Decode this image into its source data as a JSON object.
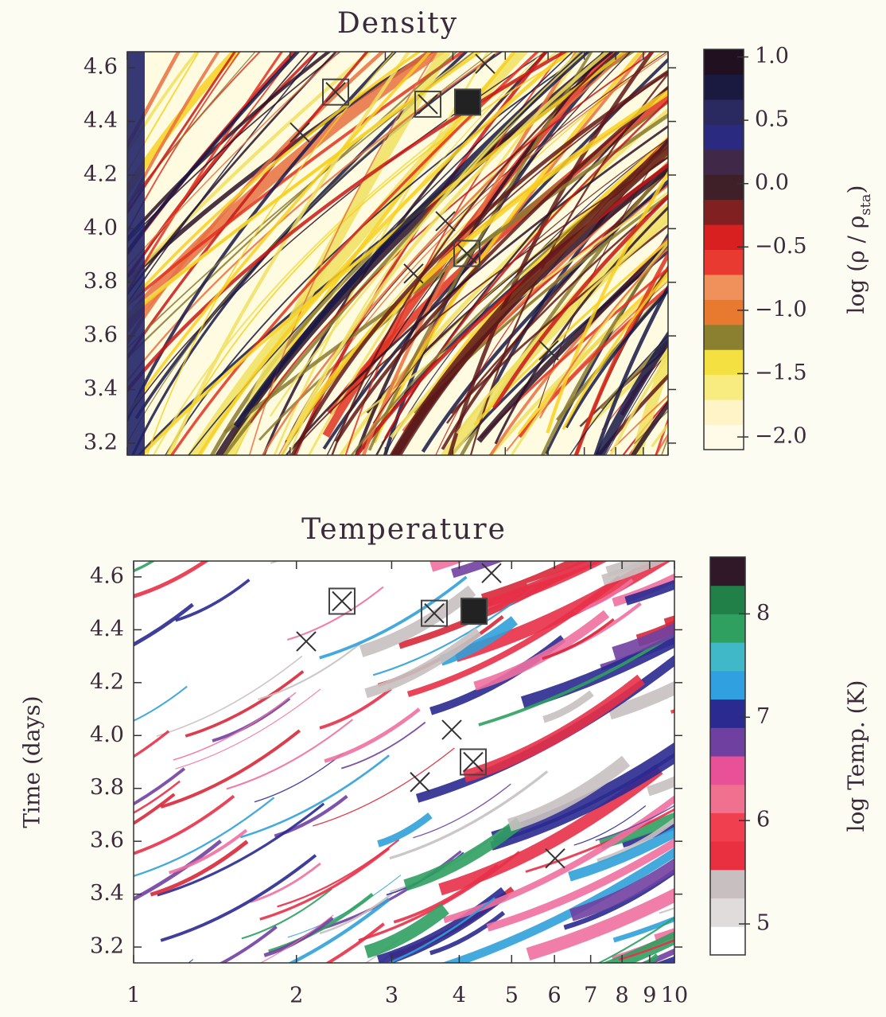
{
  "chart_data": [
    {
      "type": "density-map",
      "title": "Density",
      "xlim": [
        1,
        10
      ],
      "xscale": "log",
      "xticks": [
        1,
        2,
        3,
        4,
        5,
        6,
        7,
        8,
        9,
        10
      ],
      "xtick_labels": false,
      "ylim": [
        3.155,
        4.66
      ],
      "yticks": [
        3.2,
        3.4,
        3.6,
        3.8,
        {
          "value": 4.0,
          "label": "4.0"
        },
        4.2,
        4.4,
        4.6
      ],
      "background": "#fffbe0",
      "palette": [
        "#f8d020",
        "#c81818",
        "#e03020",
        "#601818",
        "#2a1028",
        "#181848",
        "#f0e060",
        "#e87040",
        "#8a7a30"
      ],
      "colorbar": {
        "label": [
          "log (ρ / ρ",
          "sta",
          ")"
        ],
        "lim": [
          -2.1,
          1.06
        ],
        "ticks": [
          {
            "value": -2.0,
            "label": "−2.0"
          },
          {
            "value": -1.5,
            "label": "−1.5"
          },
          {
            "value": -1.0,
            "label": "−1.0"
          },
          {
            "value": -0.5,
            "label": "−0.5"
          },
          {
            "value": 0.0,
            "label": "0.0"
          },
          {
            "value": 0.5,
            "label": "0.5"
          },
          {
            "value": 1.0,
            "label": "1.0"
          }
        ],
        "colors": [
          "#fffbe8",
          "#fff4c8",
          "#f8ec80",
          "#f4e040",
          "#8a8030",
          "#e87a30",
          "#f0905a",
          "#e83a30",
          "#d82020",
          "#802020",
          "#402028",
          "#402848",
          "#2a2a80",
          "#2a2a60",
          "#1a1a40",
          "#201020"
        ]
      }
    },
    {
      "type": "temperature-map",
      "title": "Temperature",
      "ylabel": "Time (days)",
      "xlim": [
        1,
        10
      ],
      "xscale": "log",
      "xticks": [
        1,
        2,
        3,
        4,
        5,
        6,
        7,
        8,
        9,
        10
      ],
      "xtick_labels": true,
      "ylim": [
        3.14,
        4.66
      ],
      "yticks": [
        3.2,
        3.4,
        3.6,
        3.8,
        {
          "value": 4.0,
          "label": "4.0"
        },
        4.2,
        4.4,
        4.6
      ],
      "background": "#ffffff",
      "palette": [
        "#e83048",
        "#f070a0",
        "#2a2a90",
        "#30a0d8",
        "#30a060",
        "#7040a0",
        "#c8c0c0",
        "#d82838"
      ],
      "colorbar": {
        "label": [
          "log Temp. (K)"
        ],
        "lim": [
          4.7,
          8.55
        ],
        "ticks": [
          5,
          6,
          7,
          8
        ],
        "colors": [
          "#ffffff",
          "#e0dcdc",
          "#c8c0c0",
          "#e83040",
          "#f04050",
          "#f07090",
          "#e85098",
          "#7040a0",
          "#2a2a90",
          "#30a0e0",
          "#40b8c8",
          "#30a060",
          "#208048",
          "#301828"
        ]
      }
    }
  ]
}
